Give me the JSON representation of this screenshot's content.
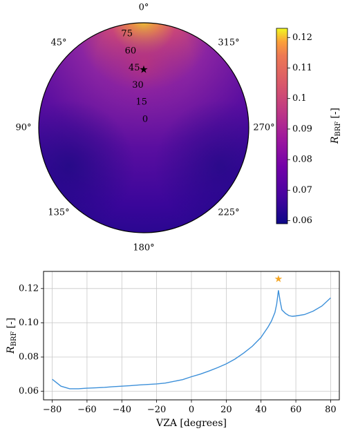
{
  "chart_data": [
    {
      "type": "heatmap",
      "projection": "polar",
      "azimuth_tick_labels": [
        "0°",
        "45°",
        "90°",
        "135°",
        "180°",
        "225°",
        "270°",
        "315°"
      ],
      "radial_tick_labels": [
        "0",
        "15",
        "30",
        "45",
        "60",
        "75"
      ],
      "colorbar": {
        "label_main": "R",
        "label_sub": "BRF",
        "label_unit": "[-]",
        "range": [
          0.059,
          0.123
        ],
        "ticks": [
          "0.06",
          "0.07",
          "0.08",
          "0.09",
          "0.1",
          "0.11",
          "0.12"
        ],
        "colormap": "plasma"
      },
      "marker": {
        "symbol": "★",
        "vza": 50,
        "azimuth": 0,
        "color": "#000000"
      },
      "description_values": {
        "min_region": "135°–180° edge",
        "max_region": "0° edge (forward peak)"
      }
    },
    {
      "type": "line",
      "xlabel": "VZA [degrees]",
      "ylabel_main": "R",
      "ylabel_sub": "BRF",
      "ylabel_unit": "[-]",
      "xlim": [
        -85,
        85
      ],
      "ylim": [
        0.055,
        0.13
      ],
      "x_ticks": [
        "−80",
        "−60",
        "−40",
        "−20",
        "0",
        "20",
        "40",
        "60",
        "80"
      ],
      "y_ticks": [
        "0.06",
        "0.08",
        "0.10",
        "0.12"
      ],
      "grid": true,
      "series": [
        {
          "color": "#3b8fd9",
          "x": [
            -80,
            -75,
            -70,
            -65,
            -60,
            -55,
            -50,
            -45,
            -40,
            -35,
            -30,
            -25,
            -20,
            -15,
            -10,
            -5,
            0,
            5,
            10,
            15,
            20,
            25,
            30,
            35,
            40,
            44,
            46,
            48,
            49,
            50,
            51,
            52,
            54,
            56,
            58,
            60,
            65,
            70,
            75,
            80
          ],
          "y": [
            0.067,
            0.063,
            0.0615,
            0.0615,
            0.0618,
            0.062,
            0.0623,
            0.0627,
            0.063,
            0.0633,
            0.0637,
            0.064,
            0.0643,
            0.0648,
            0.0658,
            0.0668,
            0.0685,
            0.07,
            0.0718,
            0.0738,
            0.076,
            0.0788,
            0.0823,
            0.0863,
            0.0915,
            0.0975,
            0.101,
            0.106,
            0.111,
            0.119,
            0.1125,
            0.1075,
            0.1055,
            0.1042,
            0.1038,
            0.104,
            0.1048,
            0.1068,
            0.1098,
            0.1145
          ]
        }
      ],
      "marker": {
        "symbol": "★",
        "x": 50,
        "y": 0.1253,
        "color": "#f5a623"
      }
    }
  ]
}
